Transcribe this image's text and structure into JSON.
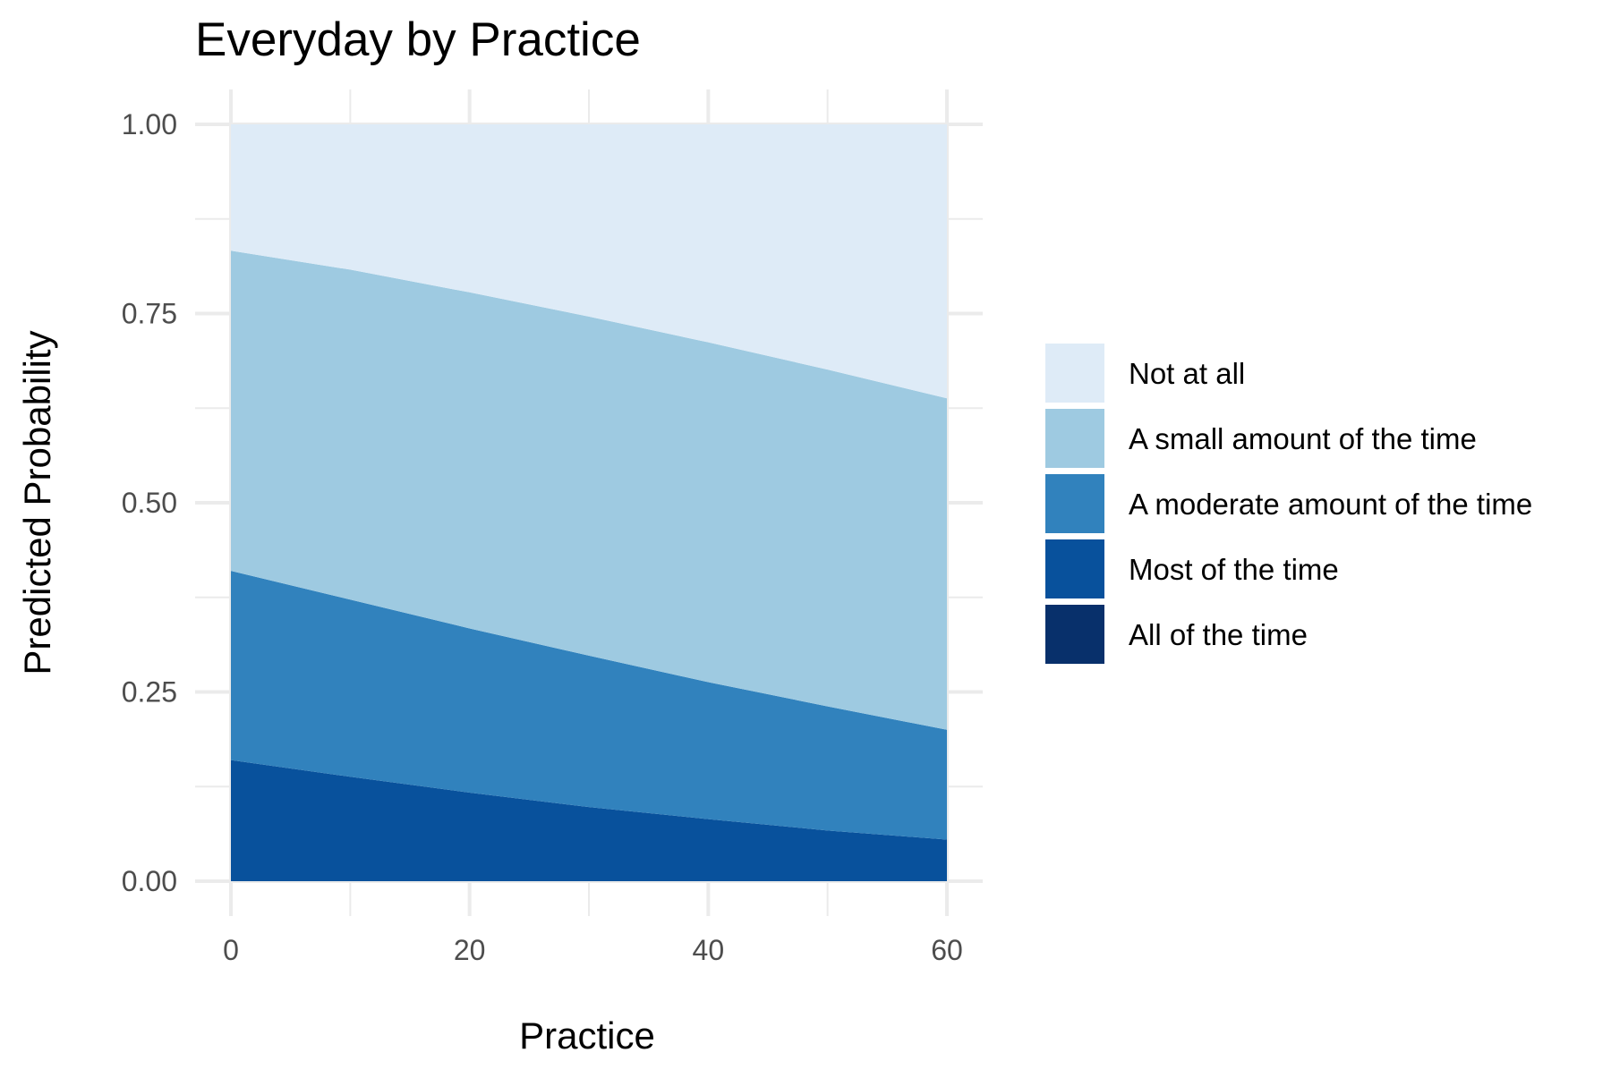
{
  "chart_data": {
    "type": "area",
    "stacked": true,
    "title": "Everyday by Practice",
    "xlabel": "Practice",
    "ylabel": "Predicted Probability",
    "xlim": [
      0,
      60
    ],
    "ylim": [
      0,
      1
    ],
    "x_ticks": [
      "0",
      "20",
      "40",
      "60"
    ],
    "y_ticks": [
      "0.00",
      "0.25",
      "0.50",
      "0.75",
      "1.00"
    ],
    "grid": true,
    "legend_position": "right",
    "x": [
      0,
      10,
      20,
      30,
      40,
      50,
      60
    ],
    "series": [
      {
        "name": "All of the time",
        "color": "#08306b",
        "cumulative": [
          0,
          0,
          0,
          0,
          0,
          0,
          0
        ]
      },
      {
        "name": "Most of the time",
        "color": "#08519c",
        "cumulative": [
          0.16,
          0.138,
          0.117,
          0.098,
          0.082,
          0.067,
          0.055
        ]
      },
      {
        "name": "A moderate amount of the time",
        "color": "#3182bd",
        "cumulative": [
          0.41,
          0.372,
          0.334,
          0.298,
          0.263,
          0.231,
          0.2
        ]
      },
      {
        "name": "A small amount of the time",
        "color": "#9ecae1",
        "cumulative": [
          0.833,
          0.808,
          0.778,
          0.746,
          0.712,
          0.676,
          0.638
        ]
      },
      {
        "name": "Not at all",
        "color": "#deebf7",
        "cumulative": [
          1,
          1,
          1,
          1,
          1,
          1,
          1
        ]
      }
    ],
    "legend_order": [
      "Not at all",
      "A small amount of the time",
      "A moderate amount of the time",
      "Most of the time",
      "All of the time"
    ]
  }
}
